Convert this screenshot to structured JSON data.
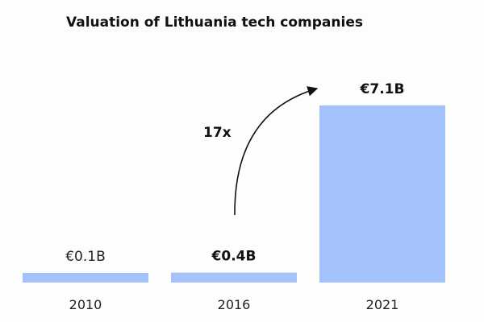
{
  "chart_data": {
    "type": "bar",
    "title": "Valuation of Lithuania tech companies",
    "categories": [
      "2010",
      "2016",
      "2021"
    ],
    "values": [
      0.1,
      0.4,
      7.1
    ],
    "value_labels": [
      "€0.1B",
      "€0.4B",
      "€7.1B"
    ],
    "bold_labels": [
      false,
      true,
      true
    ],
    "unit": "€B",
    "xlabel": "",
    "ylabel": "",
    "ylim": [
      0,
      7.1
    ],
    "grid": false,
    "legend": "none",
    "bar_color": "#a4c2fb",
    "annotation": {
      "text": "17x",
      "from": "2016",
      "to": "2021"
    }
  }
}
